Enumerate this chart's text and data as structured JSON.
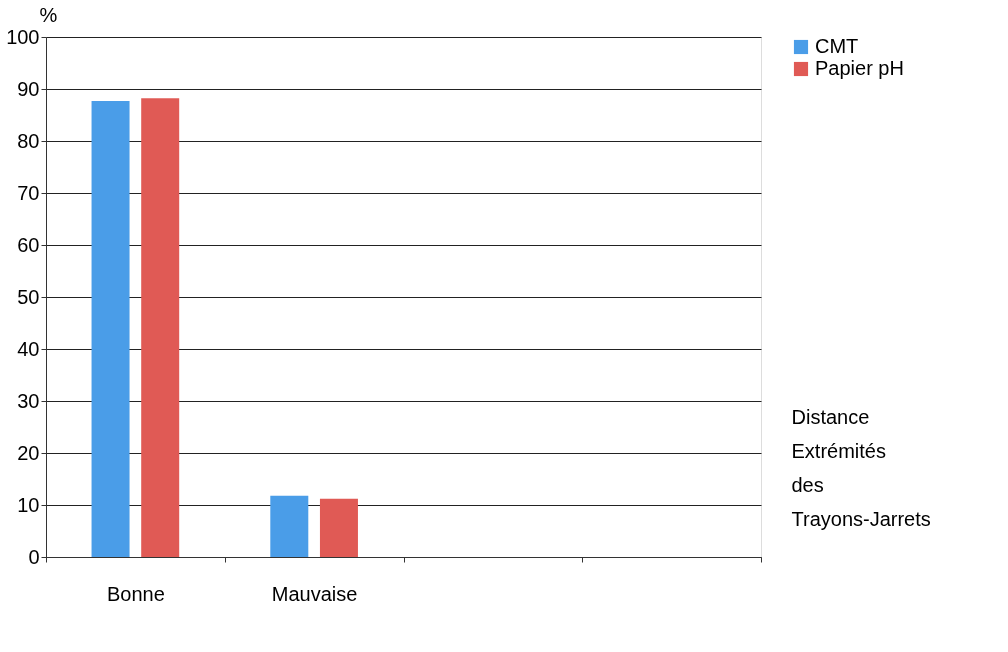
{
  "chart_data": {
    "type": "bar",
    "categories": [
      "Bonne",
      "Mauvaise",
      null,
      null
    ],
    "series": [
      {
        "name": "CMT",
        "color": "#4a9de8",
        "values": [
          87.7,
          11.8,
          null,
          null
        ]
      },
      {
        "name": "Papier pH",
        "color": "#e05a55",
        "values": [
          88.2,
          11.2,
          null,
          null
        ]
      }
    ],
    "ylabel": "%",
    "xlabel": "Distance Extrémités des Trayons-Jarrets",
    "ylim": [
      0,
      100
    ],
    "yticks": [
      0,
      10,
      20,
      30,
      40,
      50,
      60,
      70,
      80,
      90,
      100
    ],
    "grid": "y",
    "legend": "right"
  }
}
